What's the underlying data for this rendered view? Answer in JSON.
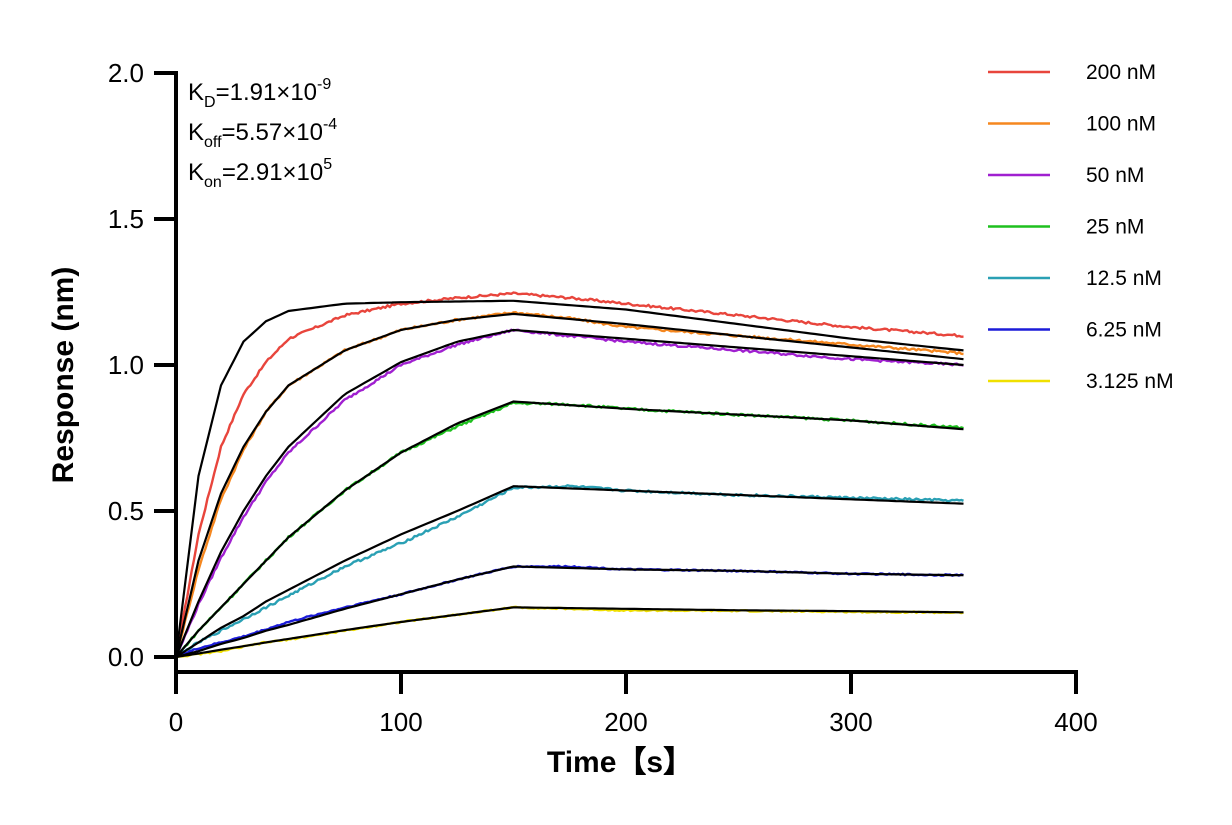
{
  "chart_data": {
    "type": "line",
    "xlabel": "Time【s】",
    "ylabel": "Response (nm)",
    "xlim": [
      0,
      400
    ],
    "ylim": [
      0,
      2.0
    ],
    "x_ticks": [
      "0",
      "100",
      "200",
      "300",
      "400"
    ],
    "y_ticks": [
      "0.0",
      "0.5",
      "1.0",
      "1.5",
      "2.0"
    ],
    "grid": false,
    "legend_position": "top-right",
    "annotations": {
      "kd": {
        "sym": "K",
        "sub": "D",
        "eq": "=1.91×10",
        "exp": "-9"
      },
      "koff": {
        "sym": "K",
        "sub": "off",
        "eq": "=5.57×10",
        "exp": "-4"
      },
      "kon": {
        "sym": "K",
        "sub": "on",
        "eq": "=2.91×10",
        "exp": "5"
      }
    },
    "fit_color": "#000000",
    "series": [
      {
        "name": "200 nM",
        "color": "#e8453c",
        "points": [
          [
            0,
            0.0
          ],
          [
            10,
            0.42
          ],
          [
            20,
            0.72
          ],
          [
            30,
            0.9
          ],
          [
            40,
            1.01
          ],
          [
            50,
            1.09
          ],
          [
            75,
            1.17
          ],
          [
            100,
            1.21
          ],
          [
            125,
            1.23
          ],
          [
            150,
            1.245
          ],
          [
            175,
            1.23
          ],
          [
            200,
            1.21
          ],
          [
            250,
            1.17
          ],
          [
            300,
            1.13
          ],
          [
            350,
            1.1
          ]
        ],
        "fit": [
          [
            0,
            0.0
          ],
          [
            10,
            0.62
          ],
          [
            20,
            0.93
          ],
          [
            30,
            1.08
          ],
          [
            40,
            1.15
          ],
          [
            50,
            1.185
          ],
          [
            75,
            1.21
          ],
          [
            100,
            1.215
          ],
          [
            150,
            1.22
          ],
          [
            200,
            1.19
          ],
          [
            250,
            1.14
          ],
          [
            300,
            1.09
          ],
          [
            350,
            1.05
          ]
        ]
      },
      {
        "name": "100 nM",
        "color": "#f5871f",
        "points": [
          [
            0,
            0.0
          ],
          [
            10,
            0.3
          ],
          [
            20,
            0.54
          ],
          [
            30,
            0.71
          ],
          [
            40,
            0.84
          ],
          [
            50,
            0.93
          ],
          [
            75,
            1.05
          ],
          [
            100,
            1.12
          ],
          [
            125,
            1.155
          ],
          [
            150,
            1.18
          ],
          [
            175,
            1.16
          ],
          [
            200,
            1.13
          ],
          [
            250,
            1.1
          ],
          [
            300,
            1.07
          ],
          [
            350,
            1.04
          ]
        ],
        "fit": [
          [
            0,
            0.0
          ],
          [
            10,
            0.33
          ],
          [
            20,
            0.56
          ],
          [
            30,
            0.72
          ],
          [
            40,
            0.84
          ],
          [
            50,
            0.93
          ],
          [
            75,
            1.05
          ],
          [
            100,
            1.12
          ],
          [
            125,
            1.155
          ],
          [
            150,
            1.175
          ],
          [
            200,
            1.14
          ],
          [
            250,
            1.1
          ],
          [
            300,
            1.06
          ],
          [
            350,
            1.02
          ]
        ]
      },
      {
        "name": "50 nM",
        "color": "#a020d0",
        "points": [
          [
            0,
            0.0
          ],
          [
            10,
            0.18
          ],
          [
            20,
            0.34
          ],
          [
            30,
            0.48
          ],
          [
            40,
            0.6
          ],
          [
            50,
            0.7
          ],
          [
            75,
            0.88
          ],
          [
            100,
            1.0
          ],
          [
            125,
            1.07
          ],
          [
            150,
            1.12
          ],
          [
            175,
            1.1
          ],
          [
            200,
            1.08
          ],
          [
            250,
            1.05
          ],
          [
            300,
            1.02
          ],
          [
            350,
            1.0
          ]
        ],
        "fit": [
          [
            0,
            0.0
          ],
          [
            10,
            0.19
          ],
          [
            20,
            0.36
          ],
          [
            30,
            0.5
          ],
          [
            40,
            0.62
          ],
          [
            50,
            0.72
          ],
          [
            75,
            0.9
          ],
          [
            100,
            1.01
          ],
          [
            125,
            1.08
          ],
          [
            150,
            1.12
          ],
          [
            200,
            1.09
          ],
          [
            250,
            1.06
          ],
          [
            300,
            1.03
          ],
          [
            350,
            1.0
          ]
        ]
      },
      {
        "name": "25 nM",
        "color": "#1ec01e",
        "points": [
          [
            0,
            0.0
          ],
          [
            10,
            0.09
          ],
          [
            20,
            0.17
          ],
          [
            30,
            0.25
          ],
          [
            40,
            0.33
          ],
          [
            50,
            0.41
          ],
          [
            75,
            0.57
          ],
          [
            100,
            0.7
          ],
          [
            125,
            0.79
          ],
          [
            150,
            0.87
          ],
          [
            175,
            0.865
          ],
          [
            200,
            0.85
          ],
          [
            250,
            0.83
          ],
          [
            300,
            0.81
          ],
          [
            350,
            0.785
          ]
        ],
        "fit": [
          [
            0,
            0.0
          ],
          [
            10,
            0.09
          ],
          [
            20,
            0.17
          ],
          [
            30,
            0.25
          ],
          [
            40,
            0.33
          ],
          [
            50,
            0.41
          ],
          [
            75,
            0.57
          ],
          [
            100,
            0.7
          ],
          [
            125,
            0.8
          ],
          [
            150,
            0.875
          ],
          [
            200,
            0.85
          ],
          [
            250,
            0.83
          ],
          [
            300,
            0.81
          ],
          [
            350,
            0.78
          ]
        ]
      },
      {
        "name": "12.5 nM",
        "color": "#2aa0b4",
        "points": [
          [
            0,
            0.0
          ],
          [
            10,
            0.05
          ],
          [
            20,
            0.09
          ],
          [
            30,
            0.13
          ],
          [
            40,
            0.17
          ],
          [
            50,
            0.21
          ],
          [
            75,
            0.31
          ],
          [
            100,
            0.39
          ],
          [
            125,
            0.48
          ],
          [
            150,
            0.58
          ],
          [
            175,
            0.585
          ],
          [
            200,
            0.57
          ],
          [
            250,
            0.555
          ],
          [
            300,
            0.545
          ],
          [
            350,
            0.535
          ]
        ],
        "fit": [
          [
            0,
            0.0
          ],
          [
            10,
            0.05
          ],
          [
            20,
            0.1
          ],
          [
            30,
            0.14
          ],
          [
            40,
            0.19
          ],
          [
            50,
            0.23
          ],
          [
            75,
            0.33
          ],
          [
            100,
            0.42
          ],
          [
            125,
            0.5
          ],
          [
            150,
            0.585
          ],
          [
            200,
            0.57
          ],
          [
            250,
            0.555
          ],
          [
            300,
            0.54
          ],
          [
            350,
            0.525
          ]
        ]
      },
      {
        "name": "6.25 nM",
        "color": "#1c1cd8",
        "points": [
          [
            0,
            0.0
          ],
          [
            10,
            0.03
          ],
          [
            20,
            0.05
          ],
          [
            30,
            0.07
          ],
          [
            40,
            0.095
          ],
          [
            50,
            0.12
          ],
          [
            75,
            0.17
          ],
          [
            100,
            0.215
          ],
          [
            125,
            0.265
          ],
          [
            150,
            0.31
          ],
          [
            175,
            0.31
          ],
          [
            200,
            0.3
          ],
          [
            250,
            0.295
          ],
          [
            300,
            0.285
          ],
          [
            350,
            0.28
          ]
        ],
        "fit": [
          [
            0,
            0.0
          ],
          [
            10,
            0.02
          ],
          [
            20,
            0.045
          ],
          [
            30,
            0.065
          ],
          [
            40,
            0.09
          ],
          [
            50,
            0.11
          ],
          [
            75,
            0.165
          ],
          [
            100,
            0.215
          ],
          [
            125,
            0.265
          ],
          [
            150,
            0.31
          ],
          [
            200,
            0.3
          ],
          [
            250,
            0.295
          ],
          [
            300,
            0.285
          ],
          [
            350,
            0.28
          ]
        ]
      },
      {
        "name": "3.125 nM",
        "color": "#f0e000",
        "points": [
          [
            0,
            0.0
          ],
          [
            10,
            0.01
          ],
          [
            20,
            0.02
          ],
          [
            30,
            0.035
          ],
          [
            40,
            0.05
          ],
          [
            50,
            0.06
          ],
          [
            75,
            0.09
          ],
          [
            100,
            0.12
          ],
          [
            125,
            0.145
          ],
          [
            150,
            0.17
          ],
          [
            175,
            0.165
          ],
          [
            200,
            0.16
          ],
          [
            250,
            0.158
          ],
          [
            300,
            0.155
          ],
          [
            350,
            0.152
          ]
        ],
        "fit": [
          [
            0,
            0.0
          ],
          [
            10,
            0.012
          ],
          [
            20,
            0.025
          ],
          [
            30,
            0.037
          ],
          [
            40,
            0.05
          ],
          [
            50,
            0.062
          ],
          [
            75,
            0.092
          ],
          [
            100,
            0.12
          ],
          [
            125,
            0.145
          ],
          [
            150,
            0.17
          ],
          [
            200,
            0.165
          ],
          [
            250,
            0.16
          ],
          [
            300,
            0.157
          ],
          [
            350,
            0.153
          ]
        ]
      }
    ]
  }
}
